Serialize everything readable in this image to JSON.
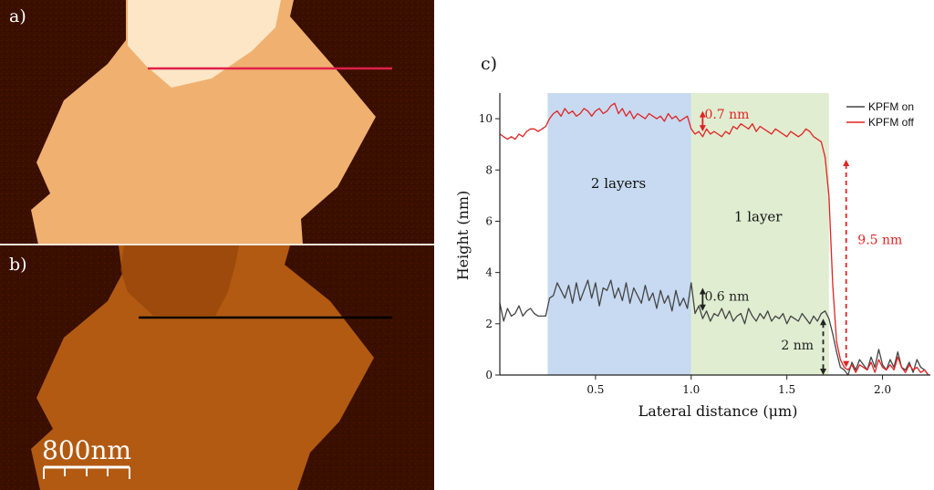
{
  "panels": {
    "a": {
      "label": "a)"
    },
    "b": {
      "label": "b)"
    },
    "c": {
      "label": "c)"
    }
  },
  "scale_bar": {
    "text": "800nm"
  },
  "colors": {
    "afm_background": "#3a0f00",
    "afm_flake_a": "#f0b070",
    "afm_flake_a_bright": "#fce6c6",
    "afm_flake_b": "#b25a12",
    "afm_flake_b_darker": "#8c3e08",
    "region_two_layers": "#a9c6ea",
    "region_one_layer": "#cfe3b8",
    "kpfm_on": "#444444",
    "kpfm_off": "#e02424",
    "profile_line_a": "#e0204a",
    "profile_line_b": "#000000"
  },
  "chart_data": {
    "type": "line",
    "title": "",
    "xlabel": "Lateral distance (μm)",
    "ylabel": "Height (nm)",
    "xlim": [
      0.0,
      2.25
    ],
    "ylim": [
      0,
      11
    ],
    "x_ticks": [
      0.5,
      1.0,
      1.5,
      2.0
    ],
    "x_tick_labels": [
      "0.5",
      "1.0",
      "1.5",
      "2.0"
    ],
    "y_ticks": [
      0,
      2,
      4,
      6,
      8,
      10
    ],
    "y_tick_labels": [
      "0",
      "2",
      "4",
      "6",
      "8",
      "10"
    ],
    "grid": false,
    "legend_position": "top-right",
    "regions": [
      {
        "name": "two-layers-region",
        "label": "2 layers",
        "x_from": 0.25,
        "x_to": 1.0,
        "label_x": 0.62,
        "label_y": 7.3
      },
      {
        "name": "one-layer-region",
        "label": "1 layer",
        "x_from": 1.0,
        "x_to": 1.72,
        "label_x": 1.35,
        "label_y": 6.0
      }
    ],
    "series": [
      {
        "name": "KPFM on",
        "x": [
          0.0,
          0.02,
          0.04,
          0.06,
          0.08,
          0.1,
          0.12,
          0.14,
          0.16,
          0.18,
          0.2,
          0.22,
          0.24,
          0.26,
          0.28,
          0.3,
          0.32,
          0.34,
          0.36,
          0.38,
          0.4,
          0.42,
          0.44,
          0.46,
          0.48,
          0.5,
          0.52,
          0.54,
          0.56,
          0.58,
          0.6,
          0.62,
          0.64,
          0.66,
          0.68,
          0.7,
          0.72,
          0.74,
          0.76,
          0.78,
          0.8,
          0.82,
          0.84,
          0.86,
          0.88,
          0.9,
          0.92,
          0.94,
          0.96,
          0.98,
          1.0,
          1.02,
          1.04,
          1.06,
          1.08,
          1.1,
          1.12,
          1.14,
          1.16,
          1.18,
          1.2,
          1.22,
          1.24,
          1.26,
          1.28,
          1.3,
          1.32,
          1.34,
          1.36,
          1.38,
          1.4,
          1.42,
          1.44,
          1.46,
          1.48,
          1.5,
          1.52,
          1.54,
          1.56,
          1.58,
          1.6,
          1.62,
          1.64,
          1.66,
          1.68,
          1.7,
          1.72,
          1.74,
          1.76,
          1.78,
          1.8,
          1.82,
          1.84,
          1.86,
          1.88,
          1.9,
          1.92,
          1.94,
          1.96,
          1.98,
          2.0,
          2.02,
          2.04,
          2.06,
          2.08,
          2.1,
          2.12,
          2.14,
          2.16,
          2.18,
          2.2,
          2.22,
          2.24
        ],
        "y": [
          2.8,
          2.1,
          2.6,
          2.3,
          2.4,
          2.7,
          2.3,
          2.5,
          2.6,
          2.4,
          2.3,
          2.3,
          2.3,
          3.0,
          3.1,
          3.6,
          3.3,
          3.0,
          3.5,
          2.8,
          3.6,
          2.9,
          3.3,
          3.7,
          3.0,
          3.6,
          2.7,
          3.4,
          3.3,
          3.7,
          3.0,
          3.4,
          2.9,
          3.6,
          2.8,
          3.4,
          3.1,
          2.8,
          3.5,
          2.9,
          3.2,
          2.6,
          3.3,
          2.8,
          3.1,
          2.5,
          3.3,
          2.7,
          3.0,
          2.6,
          3.6,
          2.4,
          2.7,
          2.2,
          2.5,
          2.1,
          2.4,
          2.3,
          2.6,
          2.2,
          2.5,
          2.1,
          2.3,
          2.4,
          2.0,
          2.6,
          2.3,
          2.1,
          2.4,
          2.2,
          2.5,
          2.1,
          2.3,
          2.2,
          2.4,
          2.0,
          2.3,
          2.2,
          2.1,
          2.4,
          2.2,
          2.0,
          2.3,
          2.1,
          2.4,
          2.5,
          2.2,
          1.6,
          0.9,
          0.3,
          0.2,
          0.0,
          0.5,
          0.2,
          0.6,
          0.4,
          0.2,
          0.7,
          0.3,
          1.0,
          0.4,
          0.2,
          0.6,
          0.3,
          0.9,
          0.3,
          0.2,
          0.5,
          0.1,
          0.6,
          0.3,
          0.2,
          0.0
        ],
        "color": "#444444"
      },
      {
        "name": "KPFM off",
        "x": [
          0.0,
          0.02,
          0.04,
          0.06,
          0.08,
          0.1,
          0.12,
          0.14,
          0.16,
          0.18,
          0.2,
          0.22,
          0.24,
          0.26,
          0.28,
          0.3,
          0.32,
          0.34,
          0.36,
          0.38,
          0.4,
          0.42,
          0.44,
          0.46,
          0.48,
          0.5,
          0.52,
          0.54,
          0.56,
          0.58,
          0.6,
          0.62,
          0.64,
          0.66,
          0.68,
          0.7,
          0.72,
          0.74,
          0.76,
          0.78,
          0.8,
          0.82,
          0.84,
          0.86,
          0.88,
          0.9,
          0.92,
          0.94,
          0.96,
          0.98,
          1.0,
          1.02,
          1.04,
          1.06,
          1.08,
          1.1,
          1.12,
          1.14,
          1.16,
          1.18,
          1.2,
          1.22,
          1.24,
          1.26,
          1.28,
          1.3,
          1.32,
          1.34,
          1.36,
          1.38,
          1.4,
          1.42,
          1.44,
          1.46,
          1.48,
          1.5,
          1.52,
          1.54,
          1.56,
          1.58,
          1.6,
          1.62,
          1.64,
          1.66,
          1.68,
          1.7,
          1.72,
          1.74,
          1.76,
          1.78,
          1.8,
          1.82,
          1.84,
          1.86,
          1.88,
          1.9,
          1.92,
          1.94,
          1.96,
          1.98,
          2.0,
          2.02,
          2.04,
          2.06,
          2.08,
          2.1,
          2.12,
          2.14,
          2.16,
          2.18,
          2.2,
          2.22,
          2.24
        ],
        "y": [
          9.4,
          9.3,
          9.2,
          9.3,
          9.2,
          9.4,
          9.3,
          9.5,
          9.6,
          9.6,
          9.5,
          9.6,
          9.7,
          10.0,
          10.2,
          10.3,
          10.1,
          10.4,
          10.2,
          10.3,
          10.1,
          10.2,
          10.4,
          10.3,
          10.1,
          10.3,
          10.4,
          10.2,
          10.3,
          10.5,
          10.6,
          10.2,
          10.4,
          10.1,
          10.3,
          10.0,
          10.2,
          10.1,
          10.0,
          10.2,
          10.1,
          10.0,
          10.1,
          9.9,
          10.2,
          10.0,
          10.1,
          9.9,
          10.0,
          10.1,
          9.6,
          9.4,
          9.5,
          9.3,
          9.6,
          9.4,
          9.5,
          9.4,
          9.3,
          9.5,
          9.4,
          9.7,
          9.6,
          9.8,
          9.7,
          9.6,
          9.8,
          9.5,
          9.7,
          9.6,
          9.5,
          9.4,
          9.6,
          9.5,
          9.4,
          9.3,
          9.5,
          9.4,
          9.3,
          9.4,
          9.6,
          9.5,
          9.3,
          9.2,
          9.1,
          8.5,
          7.0,
          3.5,
          1.3,
          0.6,
          0.3,
          0.2,
          0.4,
          0.1,
          0.4,
          0.3,
          0.2,
          0.5,
          0.1,
          0.6,
          0.3,
          0.2,
          0.4,
          0.2,
          0.7,
          0.3,
          0.1,
          0.4,
          0.2,
          0.3,
          0.1,
          0.2,
          0.0
        ],
        "color": "#e02424"
      }
    ],
    "annotations": [
      {
        "name": "step-off-annotation",
        "text": "0.7 nm",
        "x": 1.07,
        "y": 10.0,
        "color": "#e02424",
        "arrow": {
          "x": 1.06,
          "y_from": 9.5,
          "y_to": 10.3
        }
      },
      {
        "name": "step-on-annotation",
        "text": "0.6 nm",
        "x": 1.07,
        "y": 2.9,
        "color": "#222222",
        "arrow": {
          "x": 1.06,
          "y_from": 2.5,
          "y_to": 3.4
        }
      },
      {
        "name": "height-off-annotation",
        "text": "9.5 nm",
        "x": 1.87,
        "y": 5.1,
        "color": "#e02424",
        "arrow": {
          "x": 1.81,
          "y_from": 0.3,
          "y_to": 8.4
        }
      },
      {
        "name": "height-on-annotation",
        "text": "2 nm",
        "x": 1.47,
        "y": 1.0,
        "color": "#222222",
        "arrow": {
          "x": 1.69,
          "y_from": 0.0,
          "y_to": 2.2
        }
      }
    ]
  }
}
